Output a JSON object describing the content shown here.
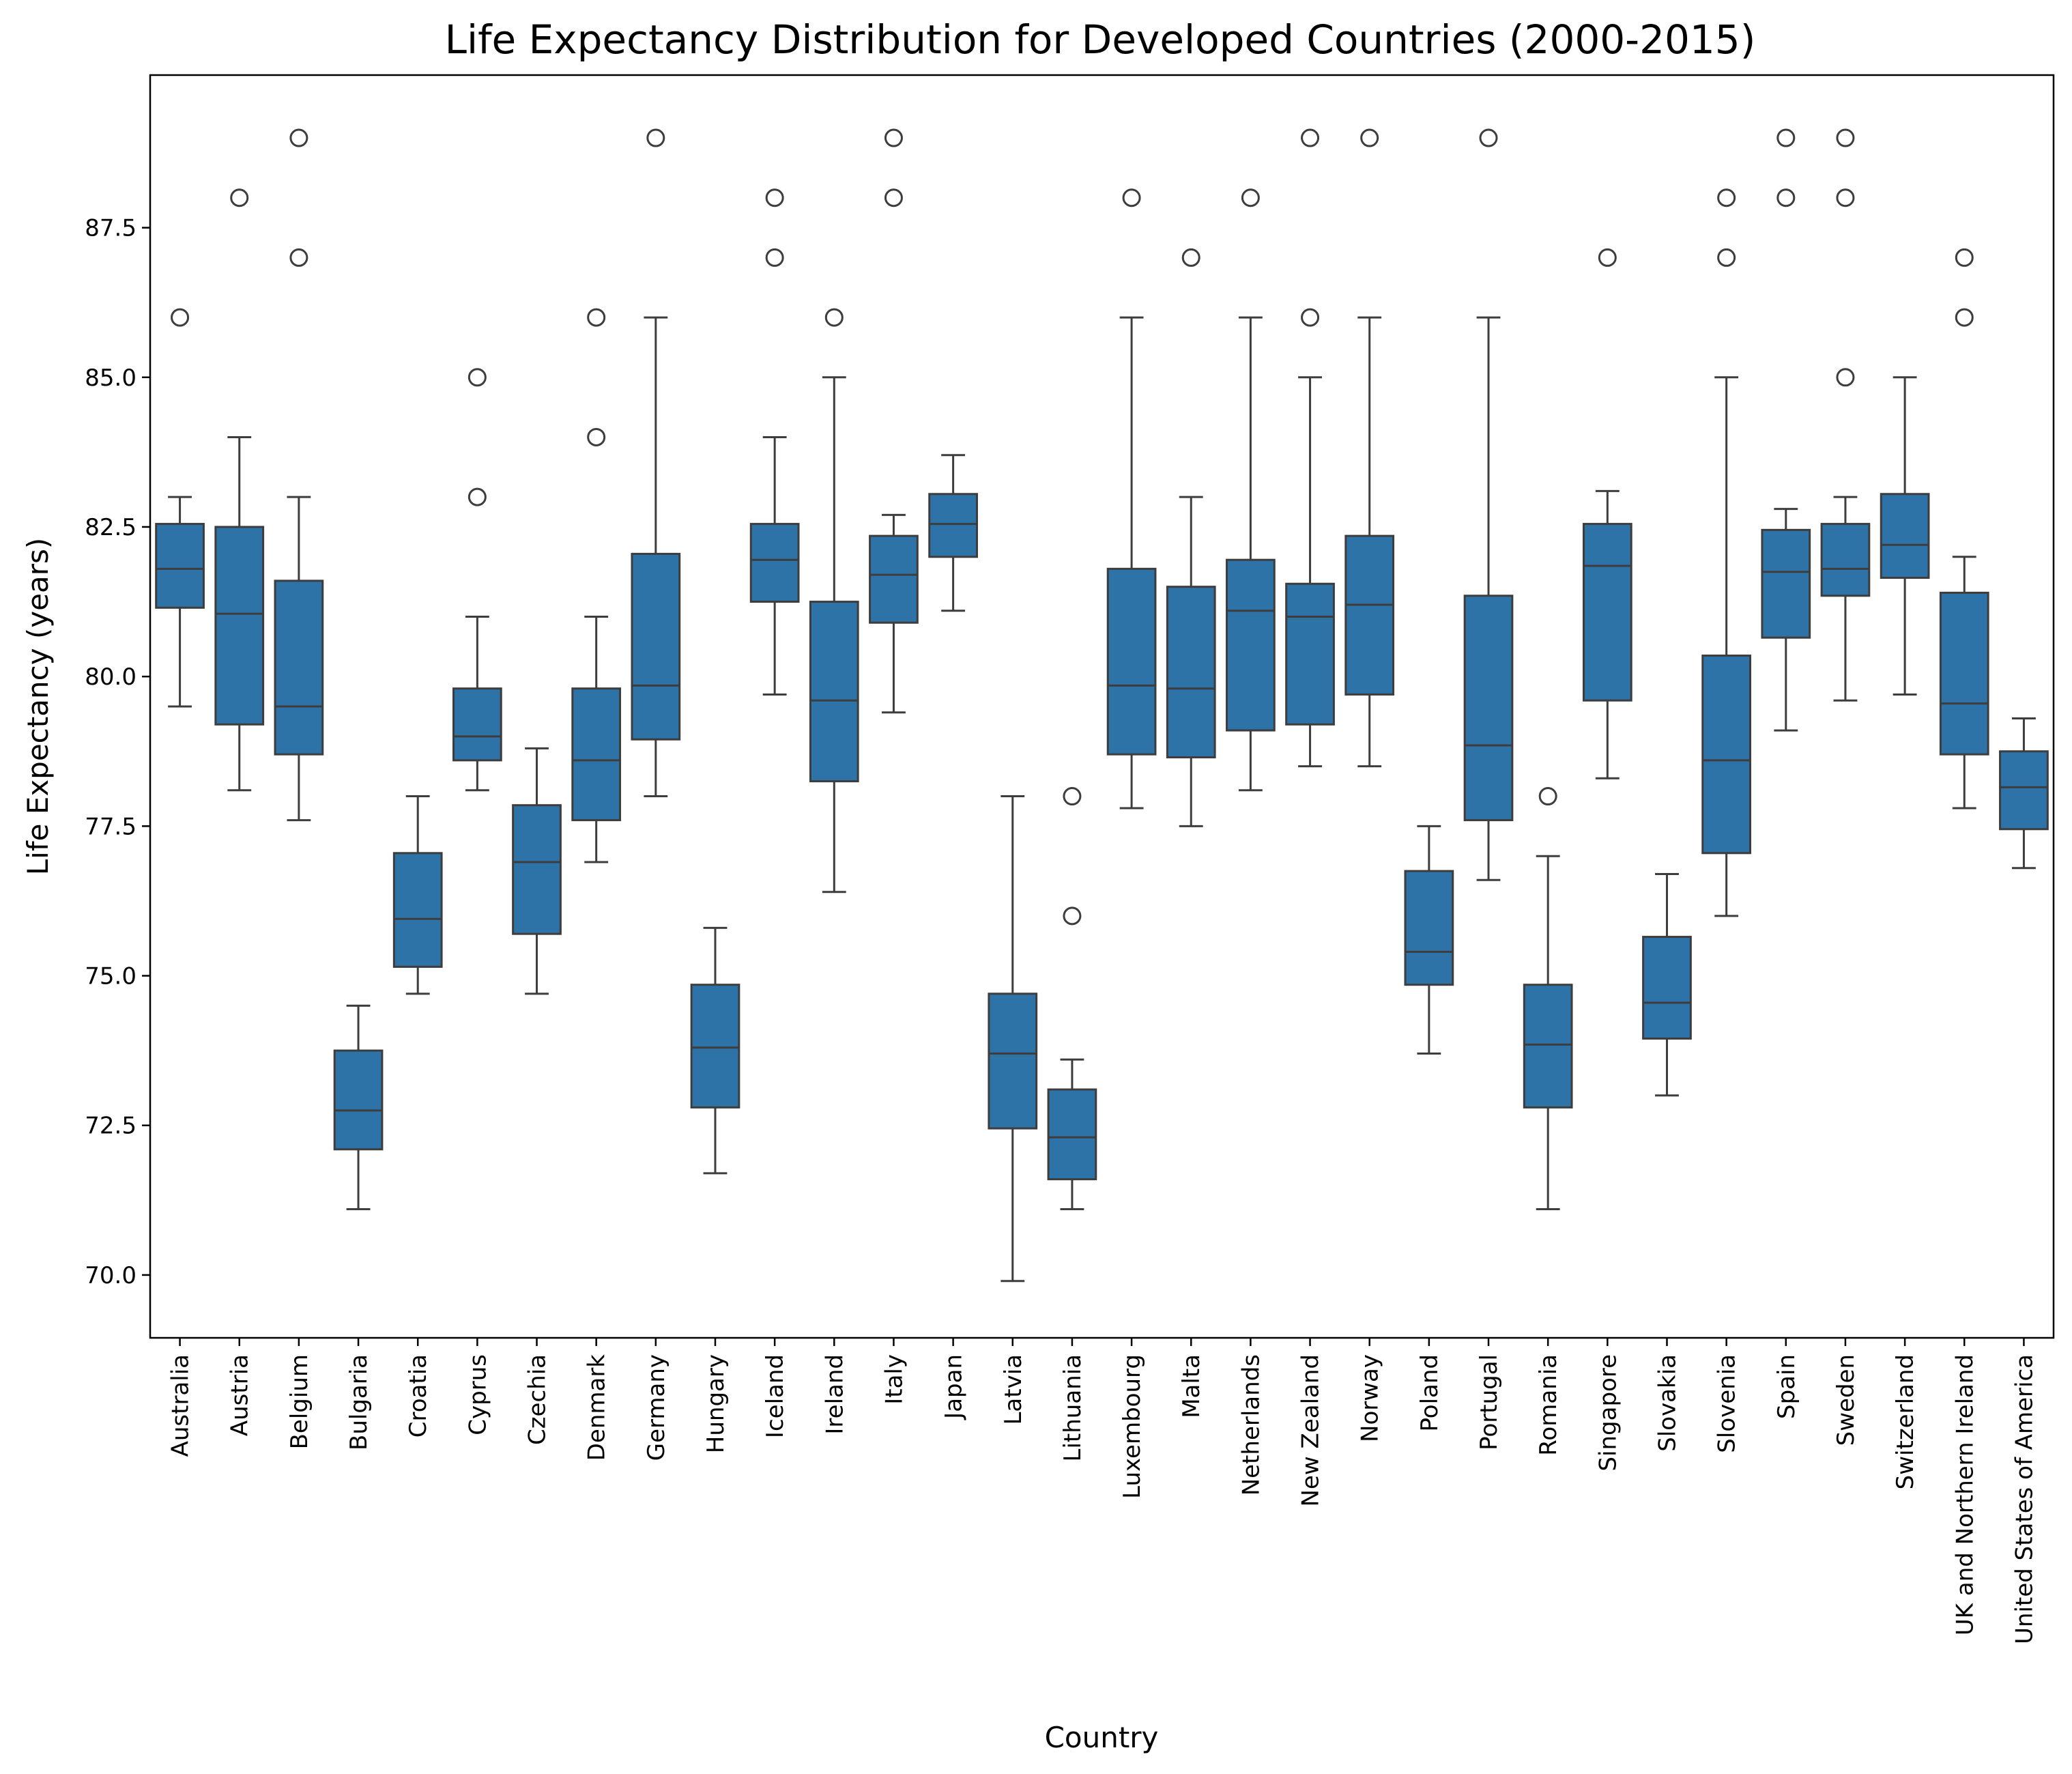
{
  "chart_data": {
    "type": "box",
    "title": "Life Expectancy Distribution for Developed Countries (2000-2015)",
    "xlabel": "Country",
    "ylabel": "Life Expectancy (years)",
    "ylim": [
      68.95,
      90.05
    ],
    "yticks": [
      70.0,
      72.5,
      75.0,
      77.5,
      80.0,
      82.5,
      85.0,
      87.5
    ],
    "color": "#2e73a8",
    "grid": false,
    "categories": [
      "Australia",
      "Austria",
      "Belgium",
      "Bulgaria",
      "Croatia",
      "Cyprus",
      "Czechia",
      "Denmark",
      "Germany",
      "Hungary",
      "Iceland",
      "Ireland",
      "Italy",
      "Japan",
      "Latvia",
      "Lithuania",
      "Luxembourg",
      "Malta",
      "Netherlands",
      "New Zealand",
      "Norway",
      "Poland",
      "Portugal",
      "Romania",
      "Singapore",
      "Slovakia",
      "Slovenia",
      "Spain",
      "Sweden",
      "Switzerland",
      "UK and Northern Ireland",
      "United States of America"
    ],
    "boxes": [
      {
        "min": 79.5,
        "q1": 81.15,
        "median": 81.8,
        "q3": 82.55,
        "max": 83.0,
        "outliers": [
          86
        ]
      },
      {
        "min": 78.1,
        "q1": 79.2,
        "median": 81.05,
        "q3": 82.5,
        "max": 84.0,
        "outliers": [
          88
        ]
      },
      {
        "min": 77.6,
        "q1": 78.7,
        "median": 79.5,
        "q3": 81.6,
        "max": 83.0,
        "outliers": [
          87,
          89
        ]
      },
      {
        "min": 71.1,
        "q1": 72.1,
        "median": 72.75,
        "q3": 73.75,
        "max": 74.5,
        "outliers": []
      },
      {
        "min": 74.7,
        "q1": 75.15,
        "median": 75.95,
        "q3": 77.05,
        "max": 78.0,
        "outliers": []
      },
      {
        "min": 78.1,
        "q1": 78.6,
        "median": 79.0,
        "q3": 79.8,
        "max": 81.0,
        "outliers": [
          83,
          85
        ]
      },
      {
        "min": 74.7,
        "q1": 75.7,
        "median": 76.9,
        "q3": 77.85,
        "max": 78.8,
        "outliers": []
      },
      {
        "min": 76.9,
        "q1": 77.6,
        "median": 78.6,
        "q3": 79.8,
        "max": 81.0,
        "outliers": [
          84,
          86
        ]
      },
      {
        "min": 78.0,
        "q1": 78.95,
        "median": 79.85,
        "q3": 82.05,
        "max": 86.0,
        "outliers": [
          89
        ]
      },
      {
        "min": 71.7,
        "q1": 72.8,
        "median": 73.8,
        "q3": 74.85,
        "max": 75.8,
        "outliers": []
      },
      {
        "min": 79.7,
        "q1": 81.25,
        "median": 81.95,
        "q3": 82.55,
        "max": 84.0,
        "outliers": [
          87,
          88
        ]
      },
      {
        "min": 76.4,
        "q1": 78.25,
        "median": 79.6,
        "q3": 81.25,
        "max": 85.0,
        "outliers": [
          86
        ]
      },
      {
        "min": 79.4,
        "q1": 80.9,
        "median": 81.7,
        "q3": 82.35,
        "max": 82.7,
        "outliers": [
          88,
          89
        ]
      },
      {
        "min": 81.1,
        "q1": 82.0,
        "median": 82.55,
        "q3": 83.05,
        "max": 83.7,
        "outliers": []
      },
      {
        "min": 69.9,
        "q1": 72.45,
        "median": 73.7,
        "q3": 74.7,
        "max": 78.0,
        "outliers": []
      },
      {
        "min": 71.1,
        "q1": 71.6,
        "median": 72.3,
        "q3": 73.1,
        "max": 73.6,
        "outliers": [
          76,
          78
        ]
      },
      {
        "min": 77.8,
        "q1": 78.7,
        "median": 79.85,
        "q3": 81.8,
        "max": 86.0,
        "outliers": [
          88
        ]
      },
      {
        "min": 77.5,
        "q1": 78.65,
        "median": 79.8,
        "q3": 81.5,
        "max": 83.0,
        "outliers": [
          87
        ]
      },
      {
        "min": 78.1,
        "q1": 79.1,
        "median": 81.1,
        "q3": 81.95,
        "max": 86.0,
        "outliers": [
          88
        ]
      },
      {
        "min": 78.5,
        "q1": 79.2,
        "median": 81.0,
        "q3": 81.55,
        "max": 85.0,
        "outliers": [
          86,
          89
        ]
      },
      {
        "min": 78.5,
        "q1": 79.7,
        "median": 81.2,
        "q3": 82.35,
        "max": 86.0,
        "outliers": [
          89
        ]
      },
      {
        "min": 73.7,
        "q1": 74.85,
        "median": 75.4,
        "q3": 76.75,
        "max": 77.5,
        "outliers": []
      },
      {
        "min": 76.6,
        "q1": 77.6,
        "median": 78.85,
        "q3": 81.35,
        "max": 86.0,
        "outliers": [
          89
        ]
      },
      {
        "min": 71.1,
        "q1": 72.8,
        "median": 73.85,
        "q3": 74.85,
        "max": 77.0,
        "outliers": [
          78
        ]
      },
      {
        "min": 78.3,
        "q1": 79.6,
        "median": 81.85,
        "q3": 82.55,
        "max": 83.1,
        "outliers": [
          87
        ]
      },
      {
        "min": 73.0,
        "q1": 73.95,
        "median": 74.55,
        "q3": 75.65,
        "max": 76.7,
        "outliers": []
      },
      {
        "min": 76.0,
        "q1": 77.05,
        "median": 78.6,
        "q3": 80.35,
        "max": 85.0,
        "outliers": [
          87,
          88
        ]
      },
      {
        "min": 79.1,
        "q1": 80.65,
        "median": 81.75,
        "q3": 82.45,
        "max": 82.8,
        "outliers": [
          88,
          89
        ]
      },
      {
        "min": 79.6,
        "q1": 81.35,
        "median": 81.8,
        "q3": 82.55,
        "max": 83.0,
        "outliers": [
          85,
          88,
          89
        ]
      },
      {
        "min": 79.7,
        "q1": 81.65,
        "median": 82.2,
        "q3": 83.05,
        "max": 85.0,
        "outliers": []
      },
      {
        "min": 77.8,
        "q1": 78.7,
        "median": 79.55,
        "q3": 81.4,
        "max": 82.0,
        "outliers": [
          86,
          87
        ]
      },
      {
        "min": 76.8,
        "q1": 77.45,
        "median": 78.15,
        "q3": 78.75,
        "max": 79.3,
        "outliers": []
      }
    ]
  }
}
